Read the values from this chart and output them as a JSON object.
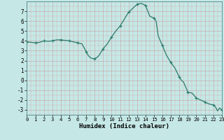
{
  "x": [
    0,
    0.5,
    1,
    1.5,
    2,
    2.5,
    3,
    3.5,
    4,
    4.5,
    5,
    5.5,
    6,
    6.5,
    7,
    7.25,
    7.5,
    7.75,
    8,
    8.25,
    8.5,
    9,
    9.5,
    10,
    10.5,
    11,
    11.5,
    12,
    12.5,
    13,
    13.25,
    13.5,
    14,
    14.5,
    15,
    15.25,
    15.5,
    16,
    16.5,
    17,
    17.5,
    18,
    18.25,
    18.5,
    19,
    19.5,
    20,
    20.5,
    21,
    21.25,
    21.5,
    22,
    22.25,
    22.5,
    22.75,
    23
  ],
  "y": [
    3.9,
    3.85,
    3.8,
    3.85,
    4.0,
    3.95,
    4.0,
    4.1,
    4.1,
    4.05,
    4.0,
    3.9,
    3.8,
    3.7,
    2.9,
    2.5,
    2.3,
    2.2,
    2.2,
    2.3,
    2.5,
    3.2,
    3.7,
    4.4,
    5.0,
    5.5,
    6.2,
    6.9,
    7.3,
    7.7,
    7.75,
    7.8,
    7.6,
    6.5,
    6.3,
    6.0,
    4.5,
    3.5,
    2.5,
    1.8,
    1.2,
    0.3,
    0.0,
    -0.2,
    -1.2,
    -1.3,
    -1.8,
    -2.0,
    -2.2,
    -2.3,
    -2.4,
    -2.5,
    -2.7,
    -3.1,
    -2.8,
    -3.0
  ],
  "marker_x": [
    0,
    1,
    2,
    3,
    4,
    5,
    6,
    7,
    8,
    9,
    10,
    11,
    12,
    13,
    14,
    15,
    16,
    17,
    18,
    19,
    20,
    21,
    22,
    23
  ],
  "marker_y": [
    3.9,
    3.8,
    4.0,
    4.0,
    4.1,
    4.0,
    3.8,
    2.9,
    2.2,
    3.2,
    4.4,
    5.5,
    6.9,
    7.7,
    7.6,
    6.3,
    3.5,
    1.8,
    0.3,
    -1.2,
    -1.8,
    -2.2,
    -2.5,
    -3.0
  ],
  "line_color": "#2d7a6a",
  "bg_color": "#c5e8e6",
  "xlabel": "Humidex (Indice chaleur)",
  "xlim": [
    0,
    23
  ],
  "ylim": [
    -3.5,
    8.0
  ],
  "yticks": [
    -3,
    -2,
    -1,
    0,
    1,
    2,
    3,
    4,
    5,
    6,
    7
  ],
  "xticks": [
    0,
    1,
    2,
    3,
    4,
    5,
    6,
    7,
    8,
    9,
    10,
    11,
    12,
    13,
    14,
    15,
    16,
    17,
    18,
    19,
    20,
    21,
    22,
    23
  ]
}
